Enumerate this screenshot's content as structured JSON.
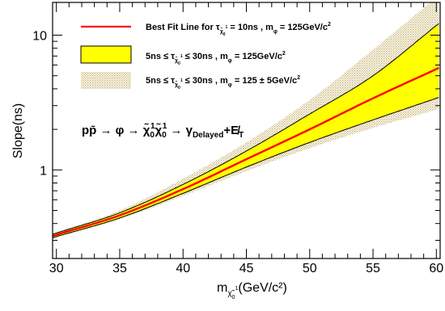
{
  "chart_data": {
    "type": "line",
    "xlabel_main": "m",
    "xlabel_sub": "χ̃",
    "xlabel_sub2": "0",
    "xlabel_sup": "1",
    "xlabel_unit": "(GeV/c²)",
    "ylabel": "Slope(ns)",
    "xlim": [
      29.7,
      60.3
    ],
    "ylim": [
      0.22,
      17.5
    ],
    "yscale": "log",
    "x_ticks": [
      "30",
      "35",
      "40",
      "45",
      "50",
      "55",
      "60"
    ],
    "y_ticks": [
      {
        "value": 1,
        "label": "1"
      },
      {
        "value": 10,
        "label": "10"
      }
    ],
    "x": [
      30,
      35,
      40,
      45,
      50,
      55,
      60
    ],
    "series": [
      {
        "name": "Best Fit Line",
        "kind": "line",
        "color": "#ff0000",
        "values": [
          0.33,
          0.46,
          0.72,
          1.2,
          2.0,
          3.4,
          5.6
        ]
      },
      {
        "name": "5ns band upper",
        "kind": "band-edge",
        "values": [
          0.34,
          0.48,
          0.78,
          1.38,
          2.6,
          5.0,
          11.8
        ]
      },
      {
        "name": "5ns band lower",
        "kind": "band-edge",
        "values": [
          0.32,
          0.44,
          0.67,
          1.05,
          1.6,
          2.35,
          3.4
        ]
      },
      {
        "name": "±5GeV band upper",
        "kind": "band-edge",
        "values": [
          0.345,
          0.5,
          0.86,
          1.6,
          3.3,
          7.8,
          19
        ]
      },
      {
        "name": "±5GeV band lower",
        "kind": "band-edge",
        "values": [
          0.315,
          0.43,
          0.64,
          0.98,
          1.45,
          2.05,
          2.8
        ]
      }
    ],
    "colors": {
      "line": "#ff0000",
      "band": "#ffff00",
      "hatch": "#c8b070",
      "frame": "#000000"
    },
    "legend": [
      {
        "text": "Best Fit Line for τ",
        "sub": "χ̃",
        "subsub": "0",
        "subsup": "1",
        "text2": " = 10ns , m",
        "sub2": "φ",
        "text3": " = 125GeV/c",
        "sup3": "2"
      },
      {
        "text": "5ns ≤ τ",
        "sub": "χ̃",
        "subsub": "0",
        "subsup": "1",
        "text2": " ≤ 30ns , m",
        "sub2": "φ",
        "text3": " = 125GeV/c",
        "sup3": "2"
      },
      {
        "text": "5ns ≤ τ",
        "sub": "χ̃",
        "subsub": "0",
        "subsup": "1",
        "text2": " ≤ 30ns , m",
        "sub2": "φ",
        "text3": " = 125 ± 5GeV/c",
        "sup3": "2"
      }
    ],
    "annotation": {
      "p": "pp̄ → φ → χ̃",
      "s1": "1",
      "b1": "0",
      "mid": "χ̃",
      "s2": "1",
      "b2": "0",
      "rest": " → γ",
      "delayed": "Delayed",
      "plus": "+E̸",
      "t": "T"
    },
    "legend_position": "top-left"
  }
}
